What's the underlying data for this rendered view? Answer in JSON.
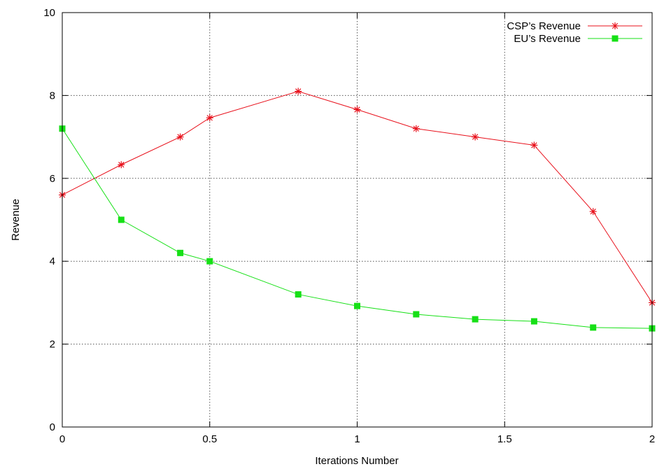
{
  "chart_data": {
    "type": "line",
    "title": "",
    "xlabel": "Iterations Number",
    "ylabel": "Revenue",
    "xlim": [
      0,
      2
    ],
    "ylim": [
      0,
      10
    ],
    "x_ticks": [
      0,
      0.5,
      1,
      1.5,
      2
    ],
    "x_tick_labels": [
      "0",
      "0.5",
      "1",
      "1.5",
      "2"
    ],
    "y_ticks": [
      0,
      2,
      4,
      6,
      8,
      10
    ],
    "y_tick_labels": [
      "0",
      "2",
      "4",
      "6",
      "8",
      "10"
    ],
    "grid": true,
    "legend_position": "top-right",
    "series": [
      {
        "name": "CSP’s Revenue",
        "color": "#e8101b",
        "marker": "asterisk",
        "x": [
          0,
          0.2,
          0.4,
          0.5,
          0.8,
          1.0,
          1.2,
          1.4,
          1.6,
          1.8,
          2.0
        ],
        "y": [
          5.6,
          6.33,
          7.0,
          7.46,
          8.1,
          7.66,
          7.2,
          7.0,
          6.8,
          5.2,
          3.0
        ]
      },
      {
        "name": "EU’s Revenue",
        "color": "#16e016",
        "marker": "square",
        "x": [
          0,
          0.2,
          0.4,
          0.5,
          0.8,
          1.0,
          1.2,
          1.4,
          1.6,
          1.8,
          2.0
        ],
        "y": [
          7.2,
          5.0,
          4.2,
          4.0,
          3.2,
          2.92,
          2.72,
          2.6,
          2.55,
          2.4,
          2.38
        ]
      }
    ]
  }
}
